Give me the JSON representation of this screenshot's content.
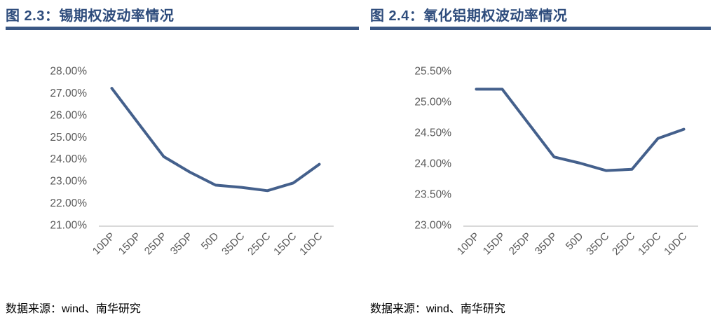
{
  "window": {
    "background": "#ffffff"
  },
  "colors": {
    "title_text": "#2e4c7c",
    "title_bar": "#3a5784",
    "line": "#44608c",
    "axis_text": "#595959",
    "axis_line": "#d9d9d9",
    "source_text": "#000000"
  },
  "figures": [
    {
      "title": "图 2.3：锡期权波动率情况",
      "source": "数据来源：wind、南华研究"
    },
    {
      "title": "图 2.4：氧化铝期权波动率情况",
      "source": "数据来源：wind、南华研究"
    }
  ],
  "chart_data": [
    {
      "type": "line",
      "title": "图 2.3：锡期权波动率情况",
      "categories": [
        "10DP",
        "15DP",
        "25DP",
        "35DP",
        "50D",
        "35DC",
        "25DC",
        "15DC",
        "10DC"
      ],
      "values": [
        27.2,
        25.65,
        24.1,
        23.4,
        22.8,
        22.7,
        22.55,
        22.9,
        23.75
      ],
      "ylim": [
        21.0,
        28.0
      ],
      "ytick_step": 1.0,
      "yticks": [
        "28.00%",
        "27.00%",
        "26.00%",
        "25.00%",
        "24.00%",
        "23.00%",
        "22.00%",
        "21.00%"
      ],
      "xlabel": "",
      "ylabel": "",
      "grid": false,
      "legend_position": "none",
      "x_tick_rotation": 45,
      "line_color": "#44608c"
    },
    {
      "type": "line",
      "title": "图 2.4：氧化铝期权波动率情况",
      "categories": [
        "10DP",
        "15DP",
        "25DP",
        "35DP",
        "50D",
        "35DC",
        "25DC",
        "15DC",
        "10DC"
      ],
      "values": [
        25.2,
        25.2,
        24.65,
        24.1,
        24.0,
        23.88,
        23.9,
        24.4,
        24.55
      ],
      "ylim": [
        23.0,
        25.5
      ],
      "ytick_step": 0.5,
      "yticks": [
        "25.50%",
        "25.00%",
        "24.50%",
        "24.00%",
        "23.50%",
        "23.00%"
      ],
      "xlabel": "",
      "ylabel": "",
      "grid": false,
      "legend_position": "none",
      "x_tick_rotation": 45,
      "line_color": "#44608c"
    }
  ]
}
